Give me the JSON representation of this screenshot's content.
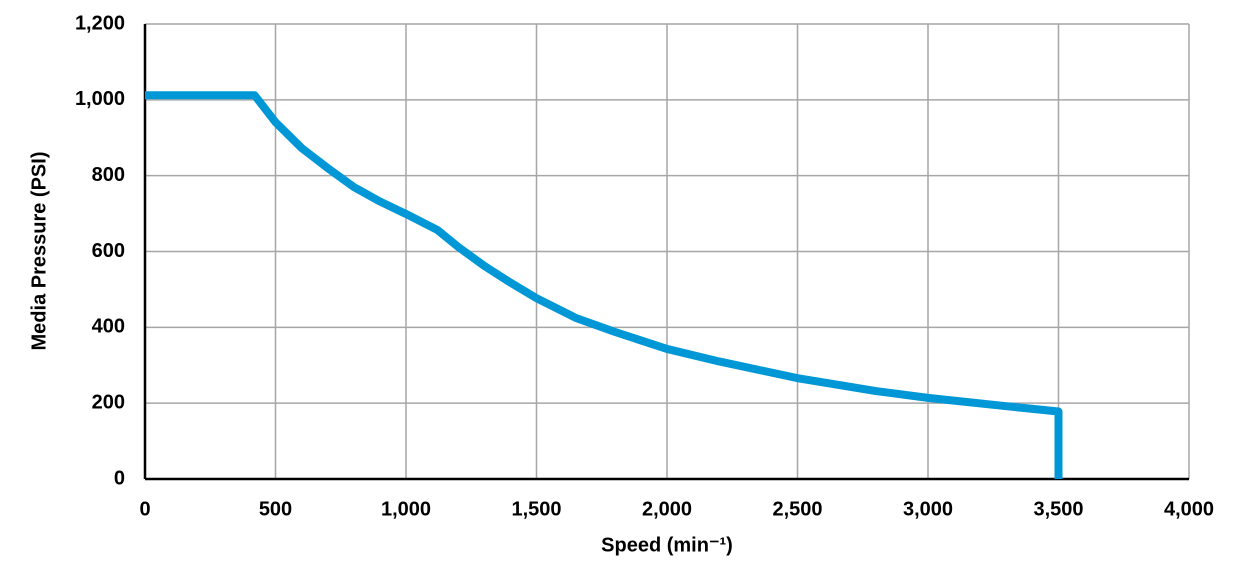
{
  "chart_data": {
    "type": "line",
    "x_label": "Speed (min⁻¹)",
    "y_label": "Media Pressure (PSI)",
    "x": [
      0,
      420,
      500,
      600,
      700,
      800,
      900,
      1000,
      1120,
      1200,
      1300,
      1400,
      1500,
      1650,
      1800,
      2000,
      2200,
      2500,
      2800,
      3000,
      3300,
      3500,
      3500
    ],
    "values": [
      1012,
      1012,
      941,
      873,
      820,
      770,
      732,
      699,
      657,
      612,
      562,
      518,
      477,
      425,
      388,
      343,
      310,
      266,
      232,
      214,
      192,
      178,
      0
    ],
    "color": "#0097d6",
    "xlim": [
      0,
      4000
    ],
    "xticks": [
      0,
      500,
      {
        "value": 1000,
        "label": "1,000"
      },
      {
        "value": 1500,
        "label": "1,500"
      },
      {
        "value": 2000,
        "label": "2,000"
      },
      {
        "value": 2500,
        "label": "2,500"
      },
      {
        "value": 3000,
        "label": "3,000"
      },
      {
        "value": 3500,
        "label": "3,500"
      },
      {
        "value": 4000,
        "label": "4,000"
      }
    ],
    "ylim": [
      0,
      1200
    ],
    "yticks": [
      0,
      200,
      400,
      600,
      800,
      {
        "value": 1000,
        "label": "1,000"
      },
      {
        "value": 1200,
        "label": "1,200"
      }
    ],
    "grid": true
  }
}
